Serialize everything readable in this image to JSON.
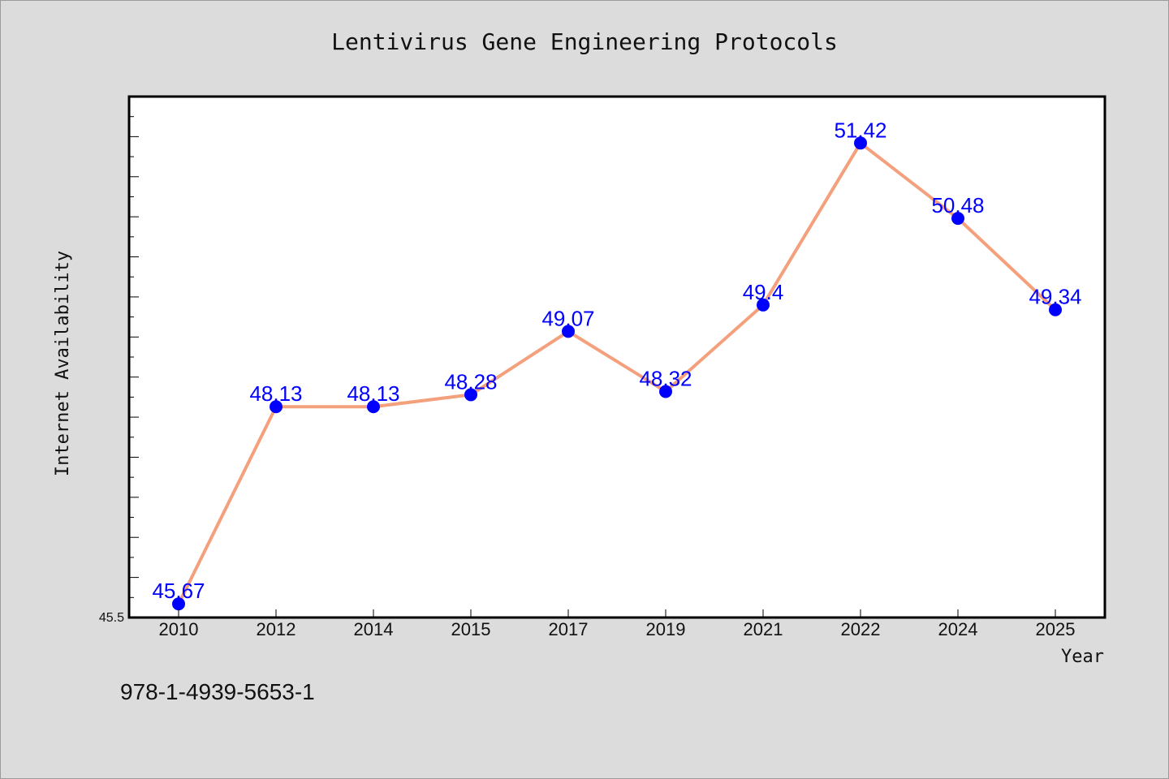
{
  "chart_data": {
    "type": "line",
    "title": "Lentivirus Gene Engineering Protocols",
    "xlabel": "Year",
    "ylabel": "Internet Availability",
    "categories": [
      "2010",
      "2012",
      "2014",
      "2015",
      "2017",
      "2019",
      "2021",
      "2022",
      "2024",
      "2025"
    ],
    "values": [
      45.67,
      48.13,
      48.13,
      48.28,
      49.07,
      48.32,
      49.4,
      51.42,
      50.48,
      49.34
    ],
    "data_labels": [
      "45.67",
      "48.13",
      "48.13",
      "48.28",
      "49.07",
      "48.32",
      "49.4",
      "51.42",
      "50.48",
      "49.34"
    ],
    "ylim": [
      45.5,
      52.0
    ],
    "ytick_label": "45.5",
    "grid": false,
    "colors": {
      "line": "#f4a07c",
      "marker": "#0000ff",
      "label": "#0000ff"
    }
  },
  "footnote": "978-1-4939-5653-1"
}
